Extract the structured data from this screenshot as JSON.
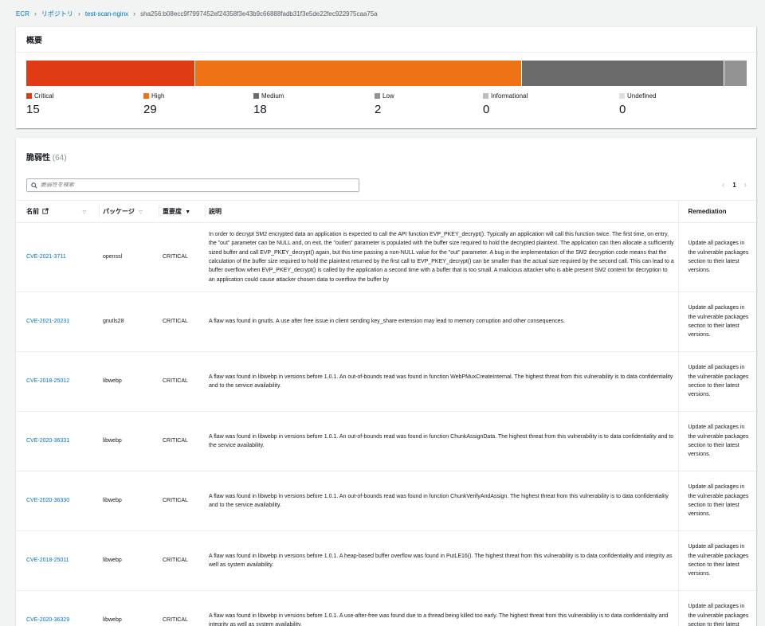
{
  "breadcrumb": {
    "items": [
      "ECR",
      "リポジトリ",
      "test-scan-nginx"
    ],
    "current": "sha256:b08ecc9f7997452ef24358f3e43b9c66888fadb31f3e5de22fec922975caa75a"
  },
  "summary": {
    "title": "概要",
    "severities": [
      {
        "label": "Critical",
        "count": "15",
        "value": 15,
        "color": "#e13b16"
      },
      {
        "label": "High",
        "count": "29",
        "value": 29,
        "color": "#ef7315"
      },
      {
        "label": "Medium",
        "count": "18",
        "value": 18,
        "color": "#6b6b6b"
      },
      {
        "label": "Low",
        "count": "2",
        "value": 2,
        "color": "#939393"
      },
      {
        "label": "Informational",
        "count": "0",
        "value": 0,
        "color": "#bdbdbd"
      },
      {
        "label": "Undefined",
        "count": "0",
        "value": 0,
        "color": "#dedede"
      }
    ]
  },
  "vulns": {
    "title": "脆弱性",
    "count": "(64)",
    "search_placeholder": "脆弱性を検索",
    "page": "1",
    "columns": {
      "name": "名前",
      "package": "パッケージ",
      "severity": "重要度",
      "description": "説明",
      "remediation": "Remediation"
    },
    "rows": [
      {
        "name": "CVE-2021-3711",
        "package": "openssl",
        "severity": "CRITICAL",
        "description": "In order to decrypt SM2 encrypted data an application is expected to call the API function EVP_PKEY_decrypt(). Typically an application will call this function twice. The first time, on entry, the \"out\" parameter can be NULL and, on exit, the \"outlen\" parameter is populated with the buffer size required to hold the decrypted plaintext. The application can then allocate a sufficiently sized buffer and call EVP_PKEY_decrypt() again, but this time passing a non-NULL value for the \"out\" parameter. A bug in the implementation of the SM2 decryption code means that the calculation of the buffer size required to hold the plaintext returned by the first call to EVP_PKEY_decrypt() can be smaller than the actual size required by the second call. This can lead to a buffer overflow when EVP_PKEY_decrypt() is called by the application a second time with a buffer that is too small. A malicious attacker who is able present SM2 content for decryption to an application could cause attacker chosen data to overflow the buffer by",
        "remediation": "Update all packages in the vulnerable packages section to their latest versions."
      },
      {
        "name": "CVE-2021-20231",
        "package": "gnutls28",
        "severity": "CRITICAL",
        "description": "A flaw was found in gnutls. A use after free issue in client sending key_share extension may lead to memory corruption and other consequences.",
        "remediation": "Update all packages in the vulnerable packages section to their latest versions."
      },
      {
        "name": "CVE-2018-25012",
        "package": "libwebp",
        "severity": "CRITICAL",
        "description": "A flaw was found in libwebp in versions before 1.0.1. An out-of-bounds read was found in function WebPMuxCreateInternal. The highest threat from this vulnerability is to data confidentiality and to the service availability.",
        "remediation": "Update all packages in the vulnerable packages section to their latest versions."
      },
      {
        "name": "CVE-2020-36331",
        "package": "libwebp",
        "severity": "CRITICAL",
        "description": "A flaw was found in libwebp in versions before 1.0.1. An out-of-bounds read was found in function ChunkAssignData. The highest threat from this vulnerability is to data confidentiality and to the service availability.",
        "remediation": "Update all packages in the vulnerable packages section to their latest versions."
      },
      {
        "name": "CVE-2020-36330",
        "package": "libwebp",
        "severity": "CRITICAL",
        "description": "A flaw was found in libwebp in versions before 1.0.1. An out-of-bounds read was found in function ChunkVerifyAndAssign. The highest threat from this vulnerability is to data confidentiality and to the service availability.",
        "remediation": "Update all packages in the vulnerable packages section to their latest versions."
      },
      {
        "name": "CVE-2018-25011",
        "package": "libwebp",
        "severity": "CRITICAL",
        "description": "A flaw was found in libwebp in versions before 1.0.1. A heap-based buffer overflow was found in PutLE16(). The highest threat from this vulnerability is to data confidentiality and integrity as well as system availability.",
        "remediation": "Update all packages in the vulnerable packages section to their latest versions."
      },
      {
        "name": "CVE-2020-36329",
        "package": "libwebp",
        "severity": "CRITICAL",
        "description": "A flaw was found in libwebp in versions before 1.0.1. A use-after-free was found due to a thread being killed too early. The highest threat from this vulnerability is to data confidentiality and integrity as well as system availability.",
        "remediation": "Update all packages in the vulnerable packages section to their latest versions."
      }
    ]
  }
}
